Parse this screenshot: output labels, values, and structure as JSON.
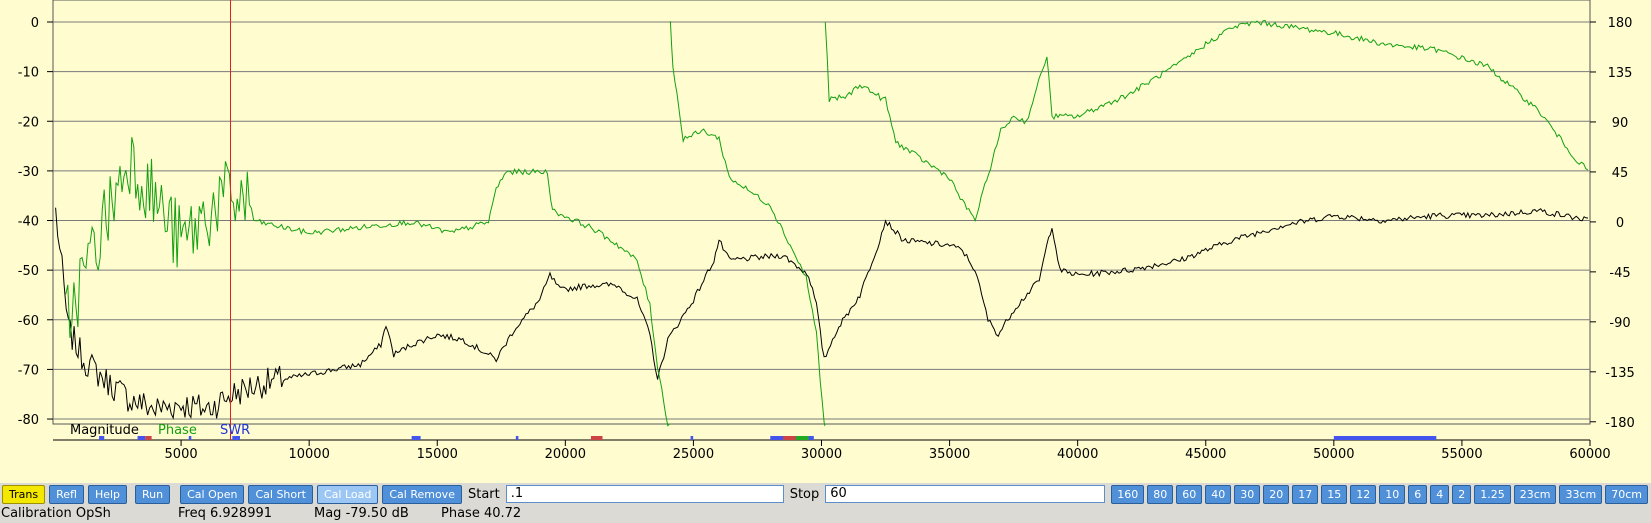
{
  "chart_data": {
    "type": "line",
    "x_ticks": [
      5000,
      10000,
      15000,
      20000,
      25000,
      30000,
      35000,
      40000,
      45000,
      50000,
      55000,
      60000
    ],
    "xlim": [
      0.1,
      60000
    ],
    "y_left_ticks": [
      0,
      -10,
      -20,
      -30,
      -40,
      -50,
      -60,
      -70,
      -80
    ],
    "ylim_left": [
      -81,
      0
    ],
    "y_right_ticks": [
      180,
      135,
      90,
      45,
      0,
      -45,
      -90,
      -135,
      -180
    ],
    "ylim_right": [
      -182,
      180
    ],
    "grid": true,
    "cursor_x": 6929,
    "legend": [
      "Magnitude",
      "Phase",
      "SWR"
    ],
    "series": [
      {
        "name": "Magnitude",
        "color": "#000000",
        "axis": "left",
        "points": [
          [
            100,
            -38
          ],
          [
            600,
            -62
          ],
          [
            1200,
            -68
          ],
          [
            2000,
            -72
          ],
          [
            3000,
            -76
          ],
          [
            4000,
            -78
          ],
          [
            5000,
            -77
          ],
          [
            6000,
            -78
          ],
          [
            7000,
            -75
          ],
          [
            8000,
            -73
          ],
          [
            9000,
            -72
          ],
          [
            10000,
            -71
          ],
          [
            11000,
            -70
          ],
          [
            12000,
            -69
          ],
          [
            12800,
            -65
          ],
          [
            13000,
            -61
          ],
          [
            13300,
            -67
          ],
          [
            14000,
            -65
          ],
          [
            15000,
            -63
          ],
          [
            16000,
            -64
          ],
          [
            17000,
            -67
          ],
          [
            17300,
            -68
          ],
          [
            18000,
            -62
          ],
          [
            19000,
            -56
          ],
          [
            19400,
            -51
          ],
          [
            19800,
            -54
          ],
          [
            21000,
            -53
          ],
          [
            22000,
            -53
          ],
          [
            22800,
            -56
          ],
          [
            23300,
            -63
          ],
          [
            23600,
            -72
          ],
          [
            24000,
            -64
          ],
          [
            25000,
            -56
          ],
          [
            25800,
            -48
          ],
          [
            26000,
            -44
          ],
          [
            26400,
            -48
          ],
          [
            28500,
            -47
          ],
          [
            29500,
            -51
          ],
          [
            29800,
            -57
          ],
          [
            30100,
            -68
          ],
          [
            30600,
            -62
          ],
          [
            31500,
            -55
          ],
          [
            32200,
            -45
          ],
          [
            32500,
            -40
          ],
          [
            33200,
            -44
          ],
          [
            35000,
            -45
          ],
          [
            35500,
            -46
          ],
          [
            36000,
            -50
          ],
          [
            36500,
            -60
          ],
          [
            36900,
            -63
          ],
          [
            37500,
            -58
          ],
          [
            38500,
            -52
          ],
          [
            38800,
            -45
          ],
          [
            39000,
            -41
          ],
          [
            39300,
            -50
          ],
          [
            40000,
            -51
          ],
          [
            42000,
            -50
          ],
          [
            44000,
            -48
          ],
          [
            46000,
            -44
          ],
          [
            48000,
            -41
          ],
          [
            50000,
            -39
          ],
          [
            52000,
            -40
          ],
          [
            54000,
            -39
          ],
          [
            56000,
            -39
          ],
          [
            58000,
            -38
          ],
          [
            60000,
            -40
          ]
        ]
      },
      {
        "name": "Phase",
        "color": "#13a010",
        "axis": "right",
        "points": [
          [
            500,
            -90
          ],
          [
            2000,
            0
          ],
          [
            3000,
            60
          ],
          [
            5000,
            -20
          ],
          [
            6500,
            20
          ],
          [
            7500,
            20
          ],
          [
            8000,
            0
          ],
          [
            10000,
            -10
          ],
          [
            12000,
            -5
          ],
          [
            14000,
            0
          ],
          [
            15500,
            -10
          ],
          [
            17000,
            0
          ],
          [
            17300,
            30
          ],
          [
            17700,
            45
          ],
          [
            19300,
            45
          ],
          [
            19500,
            10
          ],
          [
            21000,
            -5
          ],
          [
            22000,
            -20
          ],
          [
            22800,
            -35
          ],
          [
            23300,
            -75
          ],
          [
            23600,
            -130
          ],
          [
            24000,
            -182
          ],
          [
            24100,
            180
          ],
          [
            24200,
            140
          ],
          [
            24600,
            75
          ],
          [
            25400,
            82
          ],
          [
            26000,
            75
          ],
          [
            26400,
            40
          ],
          [
            28000,
            15
          ],
          [
            29400,
            -50
          ],
          [
            29800,
            -100
          ],
          [
            30100,
            -182
          ],
          [
            30150,
            180
          ],
          [
            30300,
            110
          ],
          [
            31000,
            113
          ],
          [
            31500,
            124
          ],
          [
            32300,
            112
          ],
          [
            32500,
            110
          ],
          [
            32900,
            72
          ],
          [
            34000,
            55
          ],
          [
            35000,
            40
          ],
          [
            35500,
            18
          ],
          [
            36000,
            2
          ],
          [
            36600,
            50
          ],
          [
            37000,
            82
          ],
          [
            37500,
            95
          ],
          [
            38000,
            90
          ],
          [
            38800,
            150
          ],
          [
            39000,
            95
          ],
          [
            40000,
            95
          ],
          [
            42000,
            115
          ],
          [
            44000,
            143
          ],
          [
            45000,
            160
          ],
          [
            46000,
            175
          ],
          [
            47000,
            180
          ],
          [
            50000,
            170
          ],
          [
            52000,
            160
          ],
          [
            54000,
            155
          ],
          [
            56000,
            140
          ],
          [
            58000,
            100
          ],
          [
            59500,
            55
          ],
          [
            60000,
            45
          ]
        ]
      }
    ]
  },
  "controls": {
    "trans": "Trans",
    "refl": "Refl",
    "help": "Help",
    "run": "Run",
    "cal_open": "Cal Open",
    "cal_short": "Cal Short",
    "cal_load": "Cal Load",
    "cal_remove": "Cal Remove",
    "start_label": "Start",
    "start_value": ".1",
    "stop_label": "Stop",
    "stop_value": "60",
    "bands": [
      "160",
      "80",
      "60",
      "40",
      "30",
      "20",
      "17",
      "15",
      "12",
      "10",
      "6",
      "4",
      "2",
      "1.25",
      "23cm",
      "33cm",
      "70cm"
    ]
  },
  "status": {
    "mode": "Calibration OpSh",
    "freq": "Freq  6.928991",
    "mag": "Mag   -79.50 dB",
    "phase": "Phase    40.72"
  }
}
